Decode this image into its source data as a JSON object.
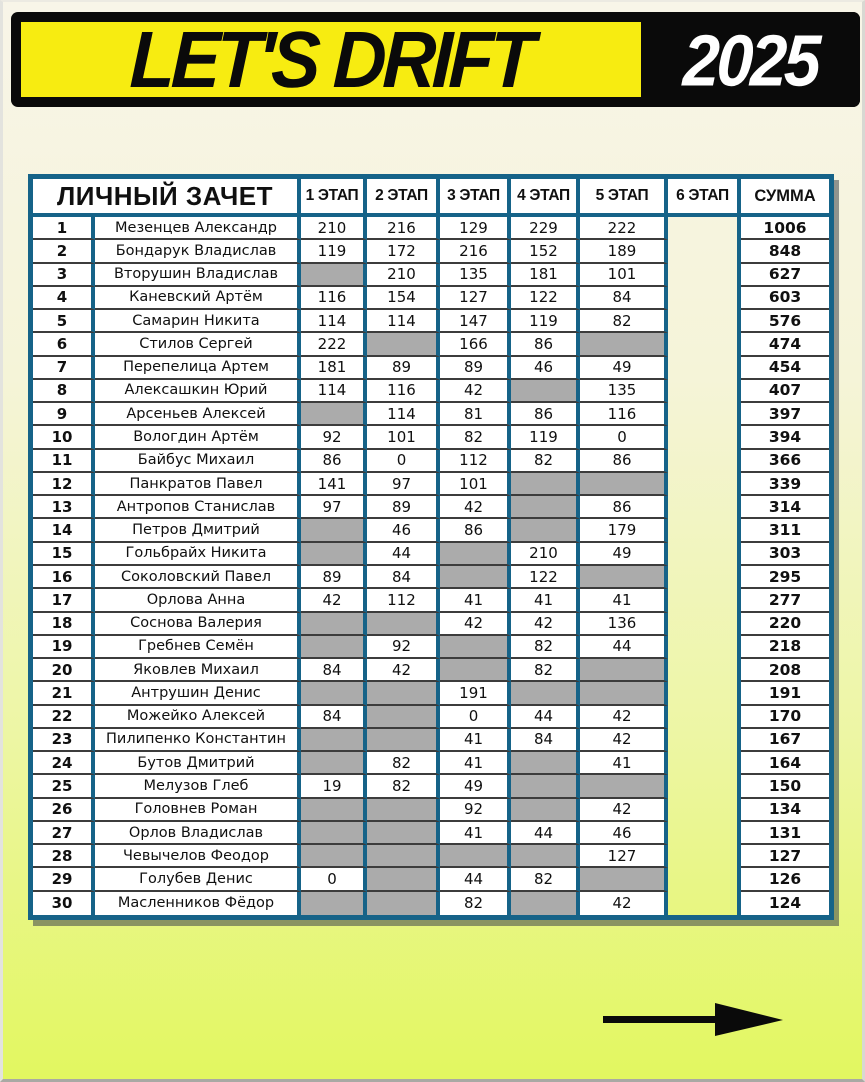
{
  "banner": {
    "title": "LET'S DRIFT",
    "year": "2025",
    "colors": {
      "yellow": "#f7ec11",
      "black": "#0a0a0a",
      "year_text": "#ffffff"
    }
  },
  "table": {
    "title": "ЛИЧНЫЙ ЗАЧЕТ",
    "stage_headers": [
      "1 ЭТАП",
      "2 ЭТАП",
      "3 ЭТАП",
      "4 ЭТАП",
      "5 ЭТАП",
      "6 ЭТАП"
    ],
    "sum_header": "СУММА",
    "colors": {
      "border_teal": "#166388",
      "missing_cell_gray": "#ababab",
      "cell_white": "#ffffff"
    },
    "rows": [
      {
        "rank": "1",
        "name": "Мезенцев Александр",
        "stages": [
          "210",
          "216",
          "129",
          "229",
          "222"
        ],
        "sum": "1006"
      },
      {
        "rank": "2",
        "name": "Бондарук Владислав",
        "stages": [
          "119",
          "172",
          "216",
          "152",
          "189"
        ],
        "sum": "848"
      },
      {
        "rank": "3",
        "name": "Вторушин Владислав",
        "stages": [
          null,
          "210",
          "135",
          "181",
          "101"
        ],
        "sum": "627"
      },
      {
        "rank": "4",
        "name": "Каневский Артём",
        "stages": [
          "116",
          "154",
          "127",
          "122",
          "84"
        ],
        "sum": "603"
      },
      {
        "rank": "5",
        "name": "Самарин Никита",
        "stages": [
          "114",
          "114",
          "147",
          "119",
          "82"
        ],
        "sum": "576"
      },
      {
        "rank": "6",
        "name": "Стилов Сергей",
        "stages": [
          "222",
          null,
          "166",
          "86",
          null
        ],
        "sum": "474"
      },
      {
        "rank": "7",
        "name": "Перепелица Артем",
        "stages": [
          "181",
          "89",
          "89",
          "46",
          "49"
        ],
        "sum": "454"
      },
      {
        "rank": "8",
        "name": "Алексашкин Юрий",
        "stages": [
          "114",
          "116",
          "42",
          null,
          "135"
        ],
        "sum": "407"
      },
      {
        "rank": "9",
        "name": "Арсеньев Алексей",
        "stages": [
          null,
          "114",
          "81",
          "86",
          "116"
        ],
        "sum": "397"
      },
      {
        "rank": "10",
        "name": "Вологдин Артём",
        "stages": [
          "92",
          "101",
          "82",
          "119",
          "0"
        ],
        "sum": "394"
      },
      {
        "rank": "11",
        "name": "Байбус Михаил",
        "stages": [
          "86",
          "0",
          "112",
          "82",
          "86"
        ],
        "sum": "366"
      },
      {
        "rank": "12",
        "name": "Панкратов Павел",
        "stages": [
          "141",
          "97",
          "101",
          null,
          null
        ],
        "sum": "339"
      },
      {
        "rank": "13",
        "name": "Антропов Станислав",
        "stages": [
          "97",
          "89",
          "42",
          null,
          "86"
        ],
        "sum": "314"
      },
      {
        "rank": "14",
        "name": "Петров Дмитрий",
        "stages": [
          null,
          "46",
          "86",
          null,
          "179"
        ],
        "sum": "311"
      },
      {
        "rank": "15",
        "name": "Гольбрайх Никита",
        "stages": [
          null,
          "44",
          null,
          "210",
          "49"
        ],
        "sum": "303"
      },
      {
        "rank": "16",
        "name": "Соколовский Павел",
        "stages": [
          "89",
          "84",
          null,
          "122",
          null
        ],
        "sum": "295"
      },
      {
        "rank": "17",
        "name": "Орлова Анна",
        "stages": [
          "42",
          "112",
          "41",
          "41",
          "41"
        ],
        "sum": "277"
      },
      {
        "rank": "18",
        "name": "Соснова Валерия",
        "stages": [
          null,
          null,
          "42",
          "42",
          "136"
        ],
        "sum": "220"
      },
      {
        "rank": "19",
        "name": "Гребнев Семён",
        "stages": [
          null,
          "92",
          null,
          "82",
          "44"
        ],
        "sum": "218"
      },
      {
        "rank": "20",
        "name": "Яковлев Михаил",
        "stages": [
          "84",
          "42",
          null,
          "82",
          null
        ],
        "sum": "208"
      },
      {
        "rank": "21",
        "name": "Антрушин Денис",
        "stages": [
          null,
          null,
          "191",
          null,
          null
        ],
        "sum": "191"
      },
      {
        "rank": "22",
        "name": "Можейко Алексей",
        "stages": [
          "84",
          null,
          "0",
          "44",
          "42"
        ],
        "sum": "170"
      },
      {
        "rank": "23",
        "name": "Пилипенко Константин",
        "stages": [
          null,
          null,
          "41",
          "84",
          "42"
        ],
        "sum": "167"
      },
      {
        "rank": "24",
        "name": "Бутов Дмитрий",
        "stages": [
          null,
          "82",
          "41",
          null,
          "41"
        ],
        "sum": "164"
      },
      {
        "rank": "25",
        "name": "Мелузов Глеб",
        "stages": [
          "19",
          "82",
          "49",
          null,
          null
        ],
        "sum": "150"
      },
      {
        "rank": "26",
        "name": "Головнев Роман",
        "stages": [
          null,
          null,
          "92",
          null,
          "42"
        ],
        "sum": "134"
      },
      {
        "rank": "27",
        "name": "Орлов Владислав",
        "stages": [
          null,
          null,
          "41",
          "44",
          "46"
        ],
        "sum": "131"
      },
      {
        "rank": "28",
        "name": "Чевычелов Феодор",
        "stages": [
          null,
          null,
          null,
          null,
          "127"
        ],
        "sum": "127"
      },
      {
        "rank": "29",
        "name": "Голубев Денис",
        "stages": [
          "0",
          null,
          "44",
          "82",
          null
        ],
        "sum": "126"
      },
      {
        "rank": "30",
        "name": "Масленников Фёдор",
        "stages": [
          null,
          null,
          "82",
          null,
          "42"
        ],
        "sum": "124"
      }
    ]
  },
  "footer": {
    "arrow_icon": "right-arrow",
    "arrow_color": "#0a0a0a"
  }
}
